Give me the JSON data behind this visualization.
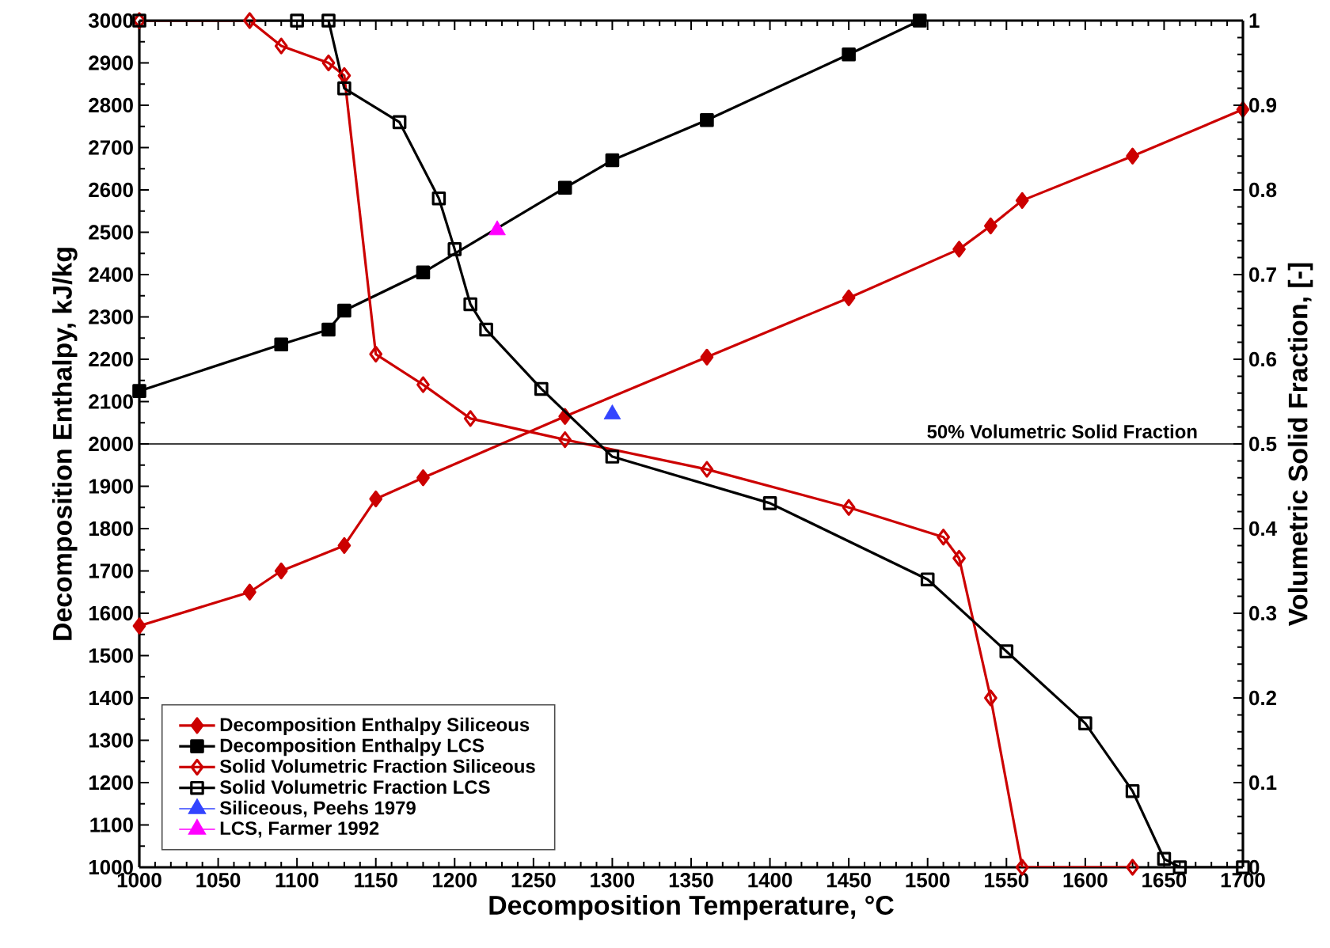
{
  "chart_data": {
    "type": "line",
    "xlabel": "Decomposition Temperature, °C",
    "ylabel": "Decomposition Enthalpy, kJ/kg",
    "y2label": "Volumetric Solid Fraction, [-]",
    "xlim": [
      1000,
      1700
    ],
    "xticks": [
      1000,
      1050,
      1100,
      1150,
      1200,
      1250,
      1300,
      1350,
      1400,
      1450,
      1500,
      1550,
      1600,
      1650,
      1700
    ],
    "ylim": [
      1000,
      3000
    ],
    "yticks": [
      1000,
      1100,
      1200,
      1300,
      1400,
      1500,
      1600,
      1700,
      1800,
      1900,
      2000,
      2100,
      2200,
      2300,
      2400,
      2500,
      2600,
      2700,
      2800,
      2900,
      3000
    ],
    "y2lim": [
      0,
      1
    ],
    "y2ticks": [
      0,
      0.1,
      0.2,
      0.3,
      0.4,
      0.5,
      0.6,
      0.7,
      0.8,
      0.9,
      1
    ],
    "grid": false,
    "legend": "bottom left",
    "line_style": "solid",
    "ref_lines": [
      {
        "axis": "y2",
        "value": 0.5,
        "label": "50% Volumetric Solid Fraction",
        "color": "#000000"
      }
    ],
    "series": [
      {
        "name": "Decomposition Enthalpy Siliceous",
        "color": "#cc0000",
        "marker": "diamond",
        "x": [
          1000,
          1070,
          1090,
          1130,
          1150,
          1180,
          1270,
          1360,
          1450,
          1520,
          1540,
          1560,
          1630,
          1700
        ],
        "values": [
          1570,
          1650,
          1700,
          1760,
          1870,
          1920,
          2065,
          2205,
          2345,
          2460,
          2515,
          2575,
          2680,
          2790
        ]
      },
      {
        "name": "Decomposition Enthalpy LCS",
        "color": "#000000",
        "marker": "square",
        "x": [
          1000,
          1090,
          1120,
          1130,
          1180,
          1270,
          1300,
          1360,
          1450,
          1495
        ],
        "values": [
          2125,
          2235,
          2270,
          2315,
          2405,
          2605,
          2670,
          2765,
          2920,
          3000
        ]
      },
      {
        "name": "Solid Volumetric Fraction Siliceous",
        "color": "#cc0000",
        "marker": "diamond",
        "axis": "y2",
        "x": [
          1000,
          1070,
          1090,
          1120,
          1130,
          1150,
          1180,
          1210,
          1270,
          1360,
          1450,
          1510,
          1520,
          1540,
          1560,
          1630
        ],
        "values": [
          1.0,
          1.0,
          0.97,
          0.95,
          0.935,
          0.606,
          0.57,
          0.53,
          0.505,
          0.47,
          0.425,
          0.39,
          0.365,
          0.2,
          0.0,
          0.0
        ]
      },
      {
        "name": "Solid Volumetric Fraction LCS",
        "color": "#000000",
        "marker": "square",
        "axis": "y2",
        "x": [
          1000,
          1100,
          1120,
          1130,
          1165,
          1190,
          1200,
          1210,
          1220,
          1255,
          1300,
          1400,
          1500,
          1550,
          1600,
          1630,
          1650,
          1660,
          1700
        ],
        "values": [
          1.0,
          1.0,
          1.0,
          0.92,
          0.88,
          0.79,
          0.73,
          0.665,
          0.635,
          0.565,
          0.485,
          0.43,
          0.34,
          0.255,
          0.17,
          0.09,
          0.01,
          0.0,
          0.0
        ]
      },
      {
        "name": "Siliceous, Peehs 1979",
        "type": "scatter",
        "color": "#3344ff",
        "marker": "triangle",
        "x": [
          1300
        ],
        "values": [
          2070
        ]
      },
      {
        "name": "LCS, Farmer 1992",
        "type": "scatter",
        "color": "#ff00ff",
        "marker": "triangle",
        "x": [
          1227
        ],
        "values": [
          2505
        ]
      }
    ]
  }
}
